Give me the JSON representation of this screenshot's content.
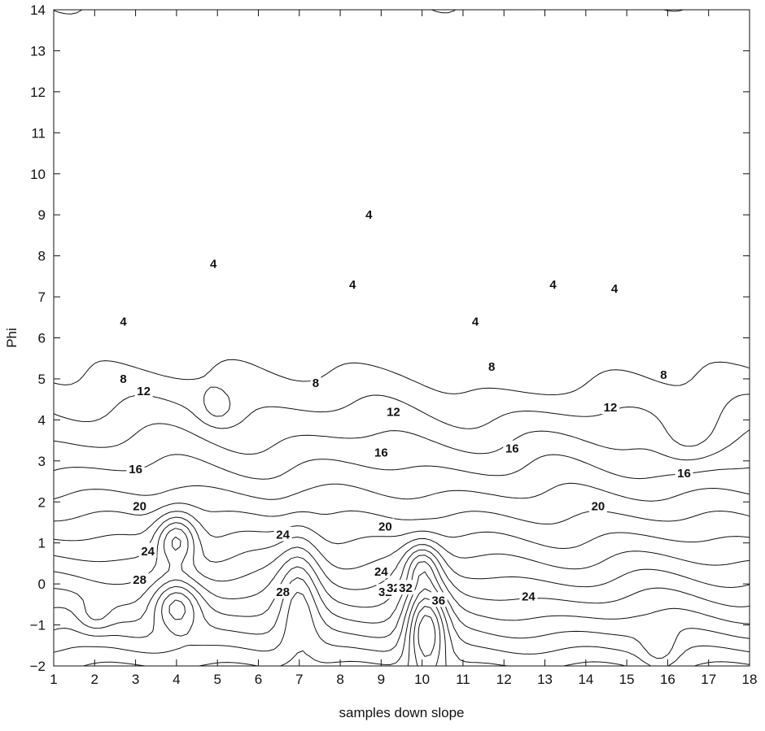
{
  "chart_data": {
    "type": "contour",
    "title": "",
    "xlabel": "samples down slope",
    "ylabel": "Phi",
    "xlim": [
      1,
      18
    ],
    "ylim": [
      -2,
      14
    ],
    "x_ticks": [
      "1",
      "2",
      "3",
      "4",
      "5",
      "6",
      "7",
      "8",
      "9",
      "10",
      "11",
      "12",
      "13",
      "14",
      "15",
      "16",
      "17",
      "18"
    ],
    "y_ticks": [
      "14",
      "13",
      "12",
      "11",
      "10",
      "9",
      "8",
      "7",
      "6",
      "5",
      "4",
      "3",
      "2",
      "1",
      "0",
      "−1",
      "−2"
    ],
    "grid": false,
    "contour_levels": [
      4,
      8,
      12,
      16,
      20,
      24,
      28,
      32,
      36
    ],
    "contour_labels": [
      {
        "text": "4",
        "x": 2.7,
        "y": 6.4
      },
      {
        "text": "4",
        "x": 4.9,
        "y": 7.8
      },
      {
        "text": "4",
        "x": 8.7,
        "y": 9.0
      },
      {
        "text": "4",
        "x": 8.3,
        "y": 7.3
      },
      {
        "text": "4",
        "x": 11.3,
        "y": 6.4
      },
      {
        "text": "4",
        "x": 13.2,
        "y": 7.3
      },
      {
        "text": "4",
        "x": 14.7,
        "y": 7.2
      },
      {
        "text": "8",
        "x": 2.7,
        "y": 5.0
      },
      {
        "text": "8",
        "x": 7.4,
        "y": 4.9
      },
      {
        "text": "8",
        "x": 11.7,
        "y": 5.3
      },
      {
        "text": "8",
        "x": 15.9,
        "y": 5.1
      },
      {
        "text": "12",
        "x": 3.2,
        "y": 4.7
      },
      {
        "text": "12",
        "x": 9.3,
        "y": 4.2
      },
      {
        "text": "12",
        "x": 14.6,
        "y": 4.3
      },
      {
        "text": "16",
        "x": 3.0,
        "y": 2.8
      },
      {
        "text": "16",
        "x": 9.0,
        "y": 3.2
      },
      {
        "text": "16",
        "x": 12.2,
        "y": 3.3
      },
      {
        "text": "16",
        "x": 16.4,
        "y": 2.7
      },
      {
        "text": "20",
        "x": 3.1,
        "y": 1.9
      },
      {
        "text": "20",
        "x": 9.1,
        "y": 1.4
      },
      {
        "text": "20",
        "x": 14.3,
        "y": 1.9
      },
      {
        "text": "24",
        "x": 3.3,
        "y": 0.8
      },
      {
        "text": "24",
        "x": 6.6,
        "y": 1.2
      },
      {
        "text": "24",
        "x": 9.0,
        "y": 0.3
      },
      {
        "text": "24",
        "x": 12.6,
        "y": -0.3
      },
      {
        "text": "28",
        "x": 3.1,
        "y": 0.1
      },
      {
        "text": "28",
        "x": 6.6,
        "y": -0.2
      },
      {
        "text": "32",
        "x": 9.1,
        "y": -0.2
      },
      {
        "text": "32",
        "x": 9.3,
        "y": -0.1
      },
      {
        "text": "32",
        "x": 9.6,
        "y": -0.1
      },
      {
        "text": "36",
        "x": 10.4,
        "y": -0.4
      }
    ]
  }
}
